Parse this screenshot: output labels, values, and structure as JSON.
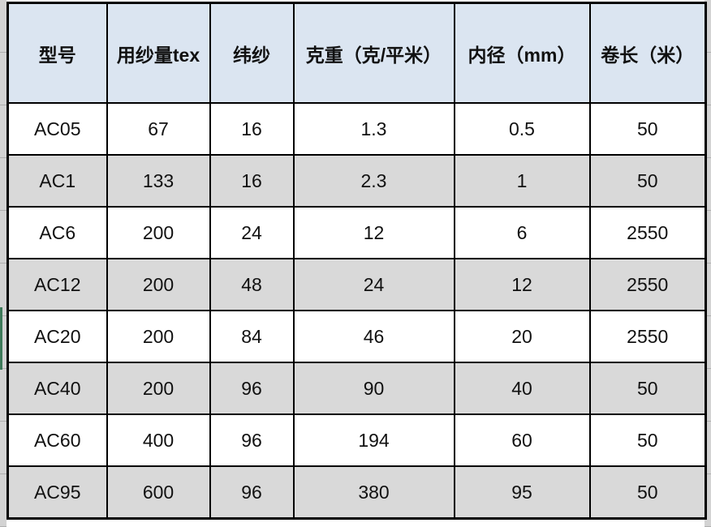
{
  "table": {
    "headers": [
      "型号",
      "用纱量tex",
      "纬纱",
      "克重（克/平米）",
      "内径（mm）",
      "卷长（米）"
    ],
    "rows": [
      [
        "AC05",
        "67",
        "16",
        "1.3",
        "0.5",
        "50"
      ],
      [
        "AC1",
        "133",
        "16",
        "2.3",
        "1",
        "50"
      ],
      [
        "AC6",
        "200",
        "24",
        "12",
        "6",
        "2550"
      ],
      [
        "AC12",
        "200",
        "48",
        "24",
        "12",
        "2550"
      ],
      [
        "AC20",
        "200",
        "84",
        "46",
        "20",
        "2550"
      ],
      [
        "AC40",
        "200",
        "96",
        "90",
        "40",
        "50"
      ],
      [
        "AC60",
        "400",
        "96",
        "194",
        "60",
        "50"
      ],
      [
        "AC95",
        "600",
        "96",
        "380",
        "95",
        "50"
      ]
    ]
  },
  "chart_data": {
    "type": "table",
    "columns": [
      "型号",
      "用纱量tex",
      "纬纱",
      "克重（克/平米）",
      "内径（mm）",
      "卷长（米）"
    ],
    "rows": [
      [
        "AC05",
        67,
        16,
        1.3,
        0.5,
        50
      ],
      [
        "AC1",
        133,
        16,
        2.3,
        1,
        50
      ],
      [
        "AC6",
        200,
        24,
        12,
        6,
        2550
      ],
      [
        "AC12",
        200,
        48,
        24,
        12,
        2550
      ],
      [
        "AC20",
        200,
        84,
        46,
        20,
        2550
      ],
      [
        "AC40",
        200,
        96,
        90,
        40,
        50
      ],
      [
        "AC60",
        400,
        96,
        194,
        60,
        50
      ],
      [
        "AC95",
        600,
        96,
        380,
        95,
        50
      ]
    ]
  },
  "colors": {
    "header_bg": "#dbe5f1",
    "stripe_row_bg": "#d9d9d9",
    "white_row_bg": "#ffffff",
    "border": "#000000",
    "selection_indicator": "#3e7a5a",
    "outer_margin_bg": "#d3d3d3"
  }
}
